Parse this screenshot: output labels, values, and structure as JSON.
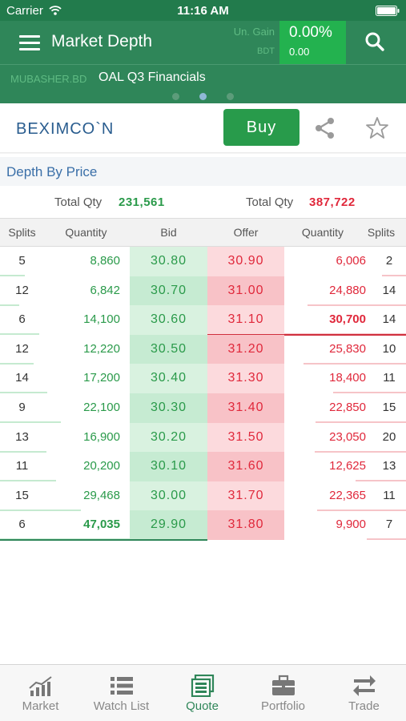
{
  "status_bar": {
    "carrier": "Carrier",
    "time": "11:16 AM"
  },
  "header": {
    "title": "Market Depth",
    "gain_label": "Un. Gain",
    "gain_currency": "BDT",
    "gain_percent": "0.00%",
    "gain_value": "0.00"
  },
  "ticker": {
    "source": "MUBASHER.BD",
    "headline": "OAL Q3 Financials",
    "pages": 3,
    "active_page": 2
  },
  "symbol": {
    "name": "BEXIMCO`N",
    "buy_label": "Buy"
  },
  "depth": {
    "section_title": "Depth By Price",
    "bid_total_label": "Total Qty",
    "bid_total": "231,561",
    "offer_total_label": "Total Qty",
    "offer_total": "387,722",
    "columns": [
      "Splits",
      "Quantity",
      "Bid",
      "Offer",
      "Quantity",
      "Splits"
    ],
    "rows": [
      {
        "bid_splits": "5",
        "bid_qty": "8,860",
        "bid": "30.80",
        "offer": "30.90",
        "offer_qty": "6,006",
        "offer_splits": "2"
      },
      {
        "bid_splits": "12",
        "bid_qty": "6,842",
        "bid": "30.70",
        "offer": "31.00",
        "offer_qty": "24,880",
        "offer_splits": "14"
      },
      {
        "bid_splits": "6",
        "bid_qty": "14,100",
        "bid": "30.60",
        "offer": "31.10",
        "offer_qty": "30,700",
        "offer_splits": "14"
      },
      {
        "bid_splits": "12",
        "bid_qty": "12,220",
        "bid": "30.50",
        "offer": "31.20",
        "offer_qty": "25,830",
        "offer_splits": "10"
      },
      {
        "bid_splits": "14",
        "bid_qty": "17,200",
        "bid": "30.40",
        "offer": "31.30",
        "offer_qty": "18,400",
        "offer_splits": "11"
      },
      {
        "bid_splits": "9",
        "bid_qty": "22,100",
        "bid": "30.30",
        "offer": "31.40",
        "offer_qty": "22,850",
        "offer_splits": "15"
      },
      {
        "bid_splits": "13",
        "bid_qty": "16,900",
        "bid": "30.20",
        "offer": "31.50",
        "offer_qty": "23,050",
        "offer_splits": "20"
      },
      {
        "bid_splits": "11",
        "bid_qty": "20,200",
        "bid": "30.10",
        "offer": "31.60",
        "offer_qty": "12,625",
        "offer_splits": "13"
      },
      {
        "bid_splits": "15",
        "bid_qty": "29,468",
        "bid": "30.00",
        "offer": "31.70",
        "offer_qty": "22,365",
        "offer_splits": "11"
      },
      {
        "bid_splits": "6",
        "bid_qty": "47,035",
        "bid": "29.90",
        "offer": "31.80",
        "offer_qty": "9,900",
        "offer_splits": "7"
      }
    ]
  },
  "tabs": [
    {
      "label": "Market",
      "icon": "market-chart-icon"
    },
    {
      "label": "Watch List",
      "icon": "watch-list-icon"
    },
    {
      "label": "Quote",
      "icon": "quote-icon",
      "active": true
    },
    {
      "label": "Portfolio",
      "icon": "briefcase-icon"
    },
    {
      "label": "Trade",
      "icon": "trade-arrows-icon"
    }
  ],
  "colors": {
    "header_green": "#2f8659",
    "status_green": "#227b4c",
    "buy_green": "#289b4b",
    "bid_text": "#2a9a4a",
    "offer_text": "#e0283b",
    "link_blue": "#3a6fa8"
  }
}
